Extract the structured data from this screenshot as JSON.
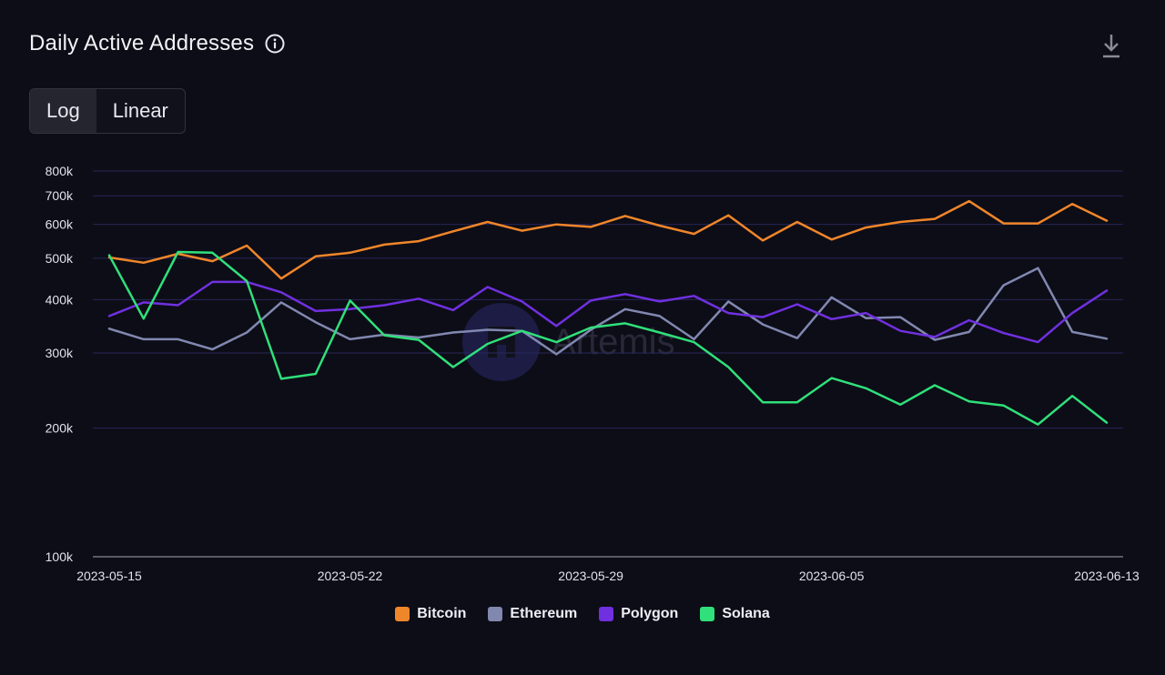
{
  "header": {
    "title": "Daily Active Addresses"
  },
  "toggle": {
    "options": [
      "Log",
      "Linear"
    ],
    "active": "Log"
  },
  "watermark": {
    "text": "Artemis"
  },
  "colors": {
    "background": "#0d0d17",
    "grid": "#26265a",
    "axis": "#5a5a66",
    "Bitcoin": "#f0862a",
    "Ethereum": "#8188b0",
    "Polygon": "#7030e0",
    "Solana": "#30e07a"
  },
  "chart_data": {
    "type": "line",
    "title": "Daily Active Addresses",
    "y_scale": "log",
    "ylim": [
      100000,
      800000
    ],
    "y_ticks": [
      100000,
      200000,
      300000,
      400000,
      500000,
      600000,
      700000,
      800000
    ],
    "y_tick_labels": [
      "100k",
      "200k",
      "300k",
      "400k",
      "500k",
      "600k",
      "700k",
      "800k"
    ],
    "x_tick_labels": [
      "2023-05-15",
      "2023-05-22",
      "2023-05-29",
      "2023-06-05",
      "2023-06-13"
    ],
    "x": [
      "2023-05-15",
      "2023-05-16",
      "2023-05-17",
      "2023-05-18",
      "2023-05-19",
      "2023-05-20",
      "2023-05-21",
      "2023-05-22",
      "2023-05-23",
      "2023-05-24",
      "2023-05-25",
      "2023-05-26",
      "2023-05-27",
      "2023-05-28",
      "2023-05-29",
      "2023-05-30",
      "2023-05-31",
      "2023-06-01",
      "2023-06-02",
      "2023-06-03",
      "2023-06-04",
      "2023-06-05",
      "2023-06-06",
      "2023-06-07",
      "2023-06-08",
      "2023-06-09",
      "2023-06-10",
      "2023-06-11",
      "2023-06-12",
      "2023-06-13"
    ],
    "grid": true,
    "legend_position": "bottom-center",
    "series": [
      {
        "name": "Bitcoin",
        "values": [
          502000,
          488000,
          512000,
          492000,
          535000,
          448000,
          505000,
          515000,
          538000,
          548000,
          578000,
          608000,
          580000,
          600000,
          592000,
          628000,
          596000,
          570000,
          630000,
          550000,
          608000,
          553000,
          590000,
          608000,
          618000,
          680000,
          603000,
          603000,
          670000,
          612000
        ]
      },
      {
        "name": "Ethereum",
        "values": [
          342000,
          323000,
          323000,
          306000,
          335000,
          394000,
          354000,
          323000,
          331000,
          326000,
          335000,
          340000,
          338000,
          298000,
          340000,
          380000,
          366000,
          323000,
          396000,
          350000,
          325000,
          405000,
          362000,
          364000,
          322000,
          336000,
          432000,
          474000,
          336000,
          324000
        ]
      },
      {
        "name": "Polygon",
        "values": [
          366000,
          394000,
          388000,
          440000,
          440000,
          416000,
          376000,
          380000,
          388000,
          402000,
          378000,
          428000,
          396000,
          347000,
          398000,
          412000,
          396000,
          408000,
          372000,
          364000,
          390000,
          360000,
          372000,
          338000,
          327000,
          358000,
          334000,
          318000,
          372000,
          420000
        ]
      },
      {
        "name": "Solana",
        "values": [
          508000,
          361000,
          517000,
          515000,
          442000,
          261000,
          268000,
          398000,
          330000,
          322000,
          278000,
          315000,
          338000,
          318000,
          344000,
          352000,
          335000,
          318000,
          278000,
          230000,
          230000,
          262000,
          248000,
          227000,
          252000,
          231000,
          226000,
          204000,
          238000,
          206000
        ]
      }
    ]
  }
}
